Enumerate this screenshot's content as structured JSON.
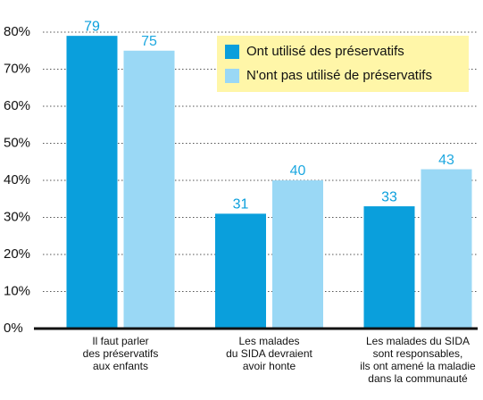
{
  "chart_data": {
    "type": "bar",
    "categories": [
      [
        "Il faut parler",
        "des préservatifs",
        "aux enfants"
      ],
      [
        "Les malades",
        "du SIDA devraient",
        "avoir honte"
      ],
      [
        "Les malades du SIDA",
        "sont responsables,",
        "ils ont amené la maladie",
        "dans la communauté"
      ]
    ],
    "series": [
      {
        "name": "Ont utilisé des préservatifs",
        "color": "#0a9fdc",
        "values": [
          79,
          31,
          33
        ]
      },
      {
        "name": "N'ont pas utilisé de préservatifs",
        "color": "#9ad8f5",
        "values": [
          75,
          40,
          43
        ]
      }
    ],
    "ylim": [
      0,
      80
    ],
    "yticks": [
      {
        "value": 0,
        "label": "0%"
      },
      {
        "value": 10,
        "label": "10%"
      },
      {
        "value": 20,
        "label": "20%"
      },
      {
        "value": 30,
        "label": "30%"
      },
      {
        "value": 40,
        "label": "40%"
      },
      {
        "value": 50,
        "label": "50%"
      },
      {
        "value": 60,
        "label": "60%"
      },
      {
        "value": 70,
        "label": "70%"
      },
      {
        "value": 80,
        "label": "80%"
      }
    ],
    "grid": true,
    "legend": "top-right",
    "legend_background": "#fff6a8"
  }
}
